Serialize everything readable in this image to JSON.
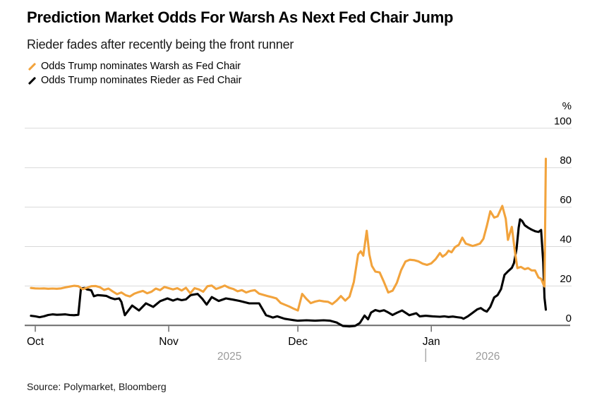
{
  "header": {
    "title": "Prediction Market Odds For Warsh As Next Fed Chair Jump",
    "subtitle": "Rieder fades after recently being the front runner"
  },
  "footer": {
    "source": "Source: Polymarket, Bloomberg"
  },
  "colors": {
    "warsh_orange": "#F2A33C",
    "rieder_black": "#000000",
    "gridline": "#D9D9D9",
    "axis": "#6B6B6B",
    "year_gray": "#9B9B9B"
  },
  "chart_data": {
    "type": "line",
    "title": "Prediction Market Odds For Warsh As Next Fed Chair Jump",
    "subtitle": "Rieder fades after recently being the front runner",
    "x_unit": "days since Oct 1, 2025",
    "xlim": [
      -2,
      121
    ],
    "ylim": [
      0,
      100
    ],
    "grid": "horizontal",
    "legend_position": "top-left",
    "y_axis": {
      "side": "right",
      "unit_label": "%",
      "ticks": [
        0,
        20,
        40,
        60,
        80,
        100
      ]
    },
    "x_ticks": [
      {
        "day": 0,
        "label": "Oct"
      },
      {
        "day": 31,
        "label": "Nov"
      },
      {
        "day": 61,
        "label": "Dec"
      },
      {
        "day": 92,
        "label": "Jan"
      }
    ],
    "year_labels": [
      {
        "label": "2025",
        "day": 45.1
      },
      {
        "label": "2026",
        "day": 105.1
      }
    ],
    "year_divider_day": 90.7,
    "series": [
      {
        "name": "Odds Trump nominates Warsh as Fed Chair",
        "color": "#F2A33C",
        "points": [
          [
            -1,
            19
          ],
          [
            0,
            18.8
          ],
          [
            1,
            18.7
          ],
          [
            2,
            18.8
          ],
          [
            3,
            18.6
          ],
          [
            4,
            18.7
          ],
          [
            5,
            18.6
          ],
          [
            6,
            18.8
          ],
          [
            7,
            19.3
          ],
          [
            8,
            19.7
          ],
          [
            9,
            20.1
          ],
          [
            10,
            19.9
          ],
          [
            11,
            18.4
          ],
          [
            12,
            19.1
          ],
          [
            13,
            19.9
          ],
          [
            14,
            20
          ],
          [
            15,
            19.4
          ],
          [
            16,
            18
          ],
          [
            17,
            18.7
          ],
          [
            18,
            17.2
          ],
          [
            19,
            15.9
          ],
          [
            20,
            16.7
          ],
          [
            21,
            15.3
          ],
          [
            22,
            14.7
          ],
          [
            23,
            16.1
          ],
          [
            24,
            16.9
          ],
          [
            25,
            17.5
          ],
          [
            26,
            16.3
          ],
          [
            27,
            17.1
          ],
          [
            28,
            18.7
          ],
          [
            29,
            17.9
          ],
          [
            30,
            19.5
          ],
          [
            31,
            18.9
          ],
          [
            32,
            18.3
          ],
          [
            33,
            18.9
          ],
          [
            34,
            17.7
          ],
          [
            35,
            19.1
          ],
          [
            36,
            16.3
          ],
          [
            37,
            18.9
          ],
          [
            38,
            18.3
          ],
          [
            39,
            17.1
          ],
          [
            40,
            19.9
          ],
          [
            41,
            20.2
          ],
          [
            42,
            18.5
          ],
          [
            43,
            19.3
          ],
          [
            44,
            20.2
          ],
          [
            45,
            19.1
          ],
          [
            46,
            18.5
          ],
          [
            47,
            17.3
          ],
          [
            48,
            17.9
          ],
          [
            49,
            16.7
          ],
          [
            50,
            17.5
          ],
          [
            51,
            17.9
          ],
          [
            52,
            16.1
          ],
          [
            53,
            15.5
          ],
          [
            54,
            14.9
          ],
          [
            55,
            14.3
          ],
          [
            56,
            13.7
          ],
          [
            57,
            11.4
          ],
          [
            58,
            10.5
          ],
          [
            59,
            9.6
          ],
          [
            60,
            8.5
          ],
          [
            61,
            7.6
          ],
          [
            62,
            16
          ],
          [
            63,
            13.4
          ],
          [
            64,
            11.3
          ],
          [
            65,
            12.1
          ],
          [
            66,
            12.6
          ],
          [
            67,
            12.2
          ],
          [
            68,
            12
          ],
          [
            69,
            10.8
          ],
          [
            70,
            12.6
          ],
          [
            71,
            14.9
          ],
          [
            72,
            12.6
          ],
          [
            73,
            14.6
          ],
          [
            74,
            22
          ],
          [
            75,
            36
          ],
          [
            75.6,
            37.6
          ],
          [
            76.2,
            35.4
          ],
          [
            77,
            48
          ],
          [
            77.6,
            36
          ],
          [
            78.2,
            30.2
          ],
          [
            79,
            27.3
          ],
          [
            80,
            26.9
          ],
          [
            81,
            22
          ],
          [
            82,
            16.7
          ],
          [
            83,
            17.6
          ],
          [
            84,
            21.6
          ],
          [
            85,
            28.1
          ],
          [
            86,
            32.4
          ],
          [
            87,
            33.3
          ],
          [
            88,
            33.1
          ],
          [
            89,
            32.5
          ],
          [
            90,
            31.3
          ],
          [
            91,
            30.7
          ],
          [
            92,
            31.5
          ],
          [
            93,
            33.6
          ],
          [
            94,
            36.7
          ],
          [
            94.6,
            34.9
          ],
          [
            95.4,
            36.1
          ],
          [
            96,
            37.9
          ],
          [
            96.7,
            37.1
          ],
          [
            97.5,
            39.7
          ],
          [
            98.4,
            40.9
          ],
          [
            99.2,
            44.5
          ],
          [
            100,
            41.5
          ],
          [
            100.8,
            40.9
          ],
          [
            101.6,
            40.3
          ],
          [
            102.5,
            40.9
          ],
          [
            103.3,
            41.5
          ],
          [
            104.1,
            43.9
          ],
          [
            104.9,
            50.5
          ],
          [
            105.7,
            57.9
          ],
          [
            106.6,
            54.7
          ],
          [
            107.4,
            55.3
          ],
          [
            108.5,
            60.6
          ],
          [
            109.3,
            54.1
          ],
          [
            109.8,
            43.4
          ],
          [
            110.7,
            50
          ],
          [
            111.5,
            36.3
          ],
          [
            112,
            29.1
          ],
          [
            112.8,
            29.7
          ],
          [
            113.7,
            28.5
          ],
          [
            114.5,
            29.1
          ],
          [
            115.3,
            27.9
          ],
          [
            116.1,
            27.9
          ],
          [
            116.9,
            24.3
          ],
          [
            117.5,
            23.7
          ],
          [
            118,
            21
          ],
          [
            118.3,
            19.8
          ],
          [
            118.6,
            84.5
          ]
        ]
      },
      {
        "name": "Odds Trump nominates Rieder as Fed Chair",
        "color": "#000000",
        "points": [
          [
            -1,
            4.9
          ],
          [
            0,
            4.6
          ],
          [
            1,
            4.2
          ],
          [
            2,
            4.6
          ],
          [
            3,
            5.3
          ],
          [
            4,
            5.6
          ],
          [
            5,
            5.4
          ],
          [
            6,
            5.5
          ],
          [
            7,
            5.6
          ],
          [
            8,
            5.3
          ],
          [
            9,
            5.2
          ],
          [
            10,
            5.4
          ],
          [
            10.6,
            18.8
          ],
          [
            11.5,
            19
          ],
          [
            12,
            18.3
          ],
          [
            13,
            17.8
          ],
          [
            13.6,
            14.8
          ],
          [
            14.5,
            15.4
          ],
          [
            15.5,
            15.2
          ],
          [
            16.5,
            15
          ],
          [
            17.5,
            13.9
          ],
          [
            18.5,
            13.3
          ],
          [
            19.5,
            13.7
          ],
          [
            20,
            12
          ],
          [
            20.8,
            5.2
          ],
          [
            22.5,
            10.1
          ],
          [
            24.1,
            7.6
          ],
          [
            25.7,
            11.2
          ],
          [
            27.4,
            9.4
          ],
          [
            29,
            12.3
          ],
          [
            30.7,
            13.7
          ],
          [
            32,
            12.6
          ],
          [
            33,
            13.4
          ],
          [
            34,
            12.8
          ],
          [
            35,
            13.2
          ],
          [
            36.1,
            15.4
          ],
          [
            37.7,
            16
          ],
          [
            38.8,
            13.5
          ],
          [
            39.8,
            10.6
          ],
          [
            41,
            14.4
          ],
          [
            42.6,
            12.4
          ],
          [
            44.3,
            13.7
          ],
          [
            45.9,
            13.1
          ],
          [
            47.5,
            12.4
          ],
          [
            49.7,
            11.2
          ],
          [
            52,
            11.2
          ],
          [
            53.6,
            5.2
          ],
          [
            55.2,
            4
          ],
          [
            56.2,
            4.6
          ],
          [
            57.9,
            3.4
          ],
          [
            59,
            3
          ],
          [
            60,
            2.7
          ],
          [
            61,
            2.4
          ],
          [
            63,
            2.6
          ],
          [
            65,
            2.4
          ],
          [
            67,
            2.6
          ],
          [
            68.5,
            2.4
          ],
          [
            70,
            1.5
          ],
          [
            70.5,
            0.9
          ],
          [
            71.5,
            -0.3
          ],
          [
            73,
            -0.5
          ],
          [
            74.3,
            -0.2
          ],
          [
            75.4,
            1.2
          ],
          [
            76.5,
            5
          ],
          [
            77.3,
            3.1
          ],
          [
            78,
            6.5
          ],
          [
            79,
            7.8
          ],
          [
            80,
            7.2
          ],
          [
            81,
            7.7
          ],
          [
            82,
            6.6
          ],
          [
            83,
            5.3
          ],
          [
            84,
            6.4
          ],
          [
            85.2,
            7.6
          ],
          [
            86.9,
            5.2
          ],
          [
            88.5,
            6.2
          ],
          [
            89.3,
            4.6
          ],
          [
            90.7,
            4.9
          ],
          [
            92.3,
            4.6
          ],
          [
            94,
            4.4
          ],
          [
            95,
            4.6
          ],
          [
            96,
            4.3
          ],
          [
            97,
            4.5
          ],
          [
            98,
            4.2
          ],
          [
            99,
            3.9
          ],
          [
            99.5,
            3.4
          ],
          [
            100.5,
            4.6
          ],
          [
            101.6,
            6.4
          ],
          [
            102.7,
            8.2
          ],
          [
            103.5,
            8.8
          ],
          [
            104.3,
            7.6
          ],
          [
            104.9,
            7
          ],
          [
            105.7,
            9.4
          ],
          [
            106.6,
            14.2
          ],
          [
            107.4,
            15.4
          ],
          [
            108.2,
            18.4
          ],
          [
            109,
            25.6
          ],
          [
            109.8,
            27.4
          ],
          [
            110.7,
            29.2
          ],
          [
            111.2,
            31.6
          ],
          [
            111.8,
            38.8
          ],
          [
            112.3,
            49.6
          ],
          [
            112.6,
            53.8
          ],
          [
            113.1,
            53
          ],
          [
            113.7,
            50.8
          ],
          [
            114.5,
            49.6
          ],
          [
            115.3,
            48.6
          ],
          [
            116.1,
            47.8
          ],
          [
            116.9,
            47.4
          ],
          [
            117.5,
            48.4
          ],
          [
            118,
            32
          ],
          [
            118.3,
            14
          ],
          [
            118.6,
            8
          ]
        ]
      }
    ]
  }
}
